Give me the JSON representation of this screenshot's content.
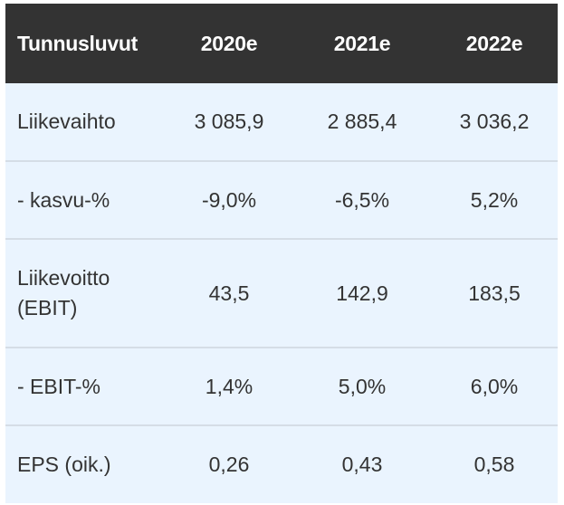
{
  "table": {
    "headers": [
      "Tunnusluvut",
      "2020e",
      "2021e",
      "2022e"
    ],
    "rows": [
      {
        "label": "Liikevaihto",
        "values": [
          "3 085,9",
          "2 885,4",
          "3 036,2"
        ]
      },
      {
        "label": "- kasvu-%",
        "values": [
          "-9,0%",
          "-6,5%",
          "5,2%"
        ]
      },
      {
        "label_line1": "Liikevoitto",
        "label_line2": "(EBIT)",
        "values": [
          "43,5",
          "142,9",
          "183,5"
        ]
      },
      {
        "label": "- EBIT-%",
        "values": [
          "1,4%",
          "5,0%",
          "6,0%"
        ]
      },
      {
        "label": "EPS (oik.)",
        "values": [
          "0,26",
          "0,43",
          "0,58"
        ]
      }
    ]
  },
  "colors": {
    "header_bg": "#333333",
    "header_text": "#ffffff",
    "row_bg": "#eaf4fe",
    "row_divider": "#d5dde6",
    "body_text": "#333333"
  }
}
